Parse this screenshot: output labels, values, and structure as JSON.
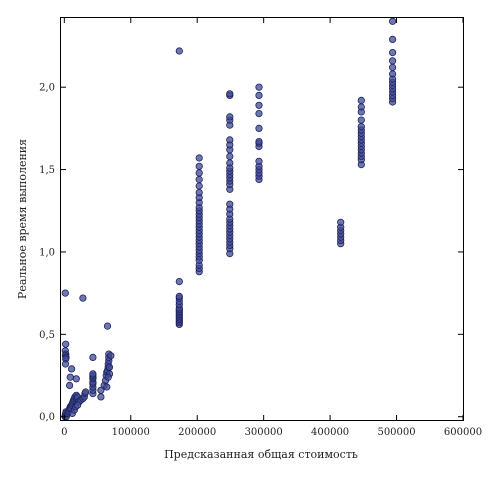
{
  "chart_data": {
    "type": "scatter",
    "title": "",
    "xlabel": "Предсказанная общая стоимость",
    "ylabel": "Реальное время выполения",
    "xlim": [
      -5000,
      600000
    ],
    "ylim": [
      -0.02,
      2.42
    ],
    "x_ticks": [
      0,
      100000,
      200000,
      300000,
      400000,
      500000,
      600000
    ],
    "x_tick_labels": [
      "0",
      "100000",
      "200000",
      "300000",
      "400000",
      "500000",
      "600000"
    ],
    "y_ticks": [
      0.0,
      0.5,
      1.0,
      1.5,
      2.0
    ],
    "y_tick_labels": [
      "0,0",
      "0,5",
      "1,0",
      "1,5",
      "2,0"
    ],
    "grid": false,
    "legend": "none",
    "marker_color": "#3f4a9a",
    "series": [
      {
        "points": [
          [
            1000,
            0.0
          ],
          [
            1500,
            0.01
          ],
          [
            2000,
            0.02
          ],
          [
            3000,
            0.0
          ],
          [
            2500,
            0.03
          ],
          [
            1500,
            0.75
          ],
          [
            2000,
            0.44
          ],
          [
            1500,
            0.4
          ],
          [
            2200,
            0.38
          ],
          [
            1800,
            0.37
          ],
          [
            2500,
            0.36
          ],
          [
            2000,
            0.35
          ],
          [
            1800,
            0.32
          ],
          [
            5000,
            0.02
          ],
          [
            6000,
            0.03
          ],
          [
            7000,
            0.04
          ],
          [
            8000,
            0.05
          ],
          [
            9000,
            0.06
          ],
          [
            10000,
            0.05
          ],
          [
            11000,
            0.07
          ],
          [
            12000,
            0.08
          ],
          [
            13000,
            0.09
          ],
          [
            14000,
            0.1
          ],
          [
            15000,
            0.11
          ],
          [
            16000,
            0.12
          ],
          [
            18000,
            0.13
          ],
          [
            19000,
            0.11
          ],
          [
            20000,
            0.12
          ],
          [
            22000,
            0.09
          ],
          [
            25000,
            0.1
          ],
          [
            28000,
            0.11
          ],
          [
            30000,
            0.12
          ],
          [
            31000,
            0.14
          ],
          [
            32000,
            0.15
          ],
          [
            8000,
            0.19
          ],
          [
            9000,
            0.24
          ],
          [
            11000,
            0.29
          ],
          [
            18000,
            0.23
          ],
          [
            28000,
            0.72
          ],
          [
            12000,
            0.02
          ],
          [
            15000,
            0.04
          ],
          [
            17000,
            0.06
          ],
          [
            20000,
            0.07
          ],
          [
            43000,
            0.14
          ],
          [
            43000,
            0.16
          ],
          [
            43000,
            0.18
          ],
          [
            43000,
            0.2
          ],
          [
            43000,
            0.21
          ],
          [
            43000,
            0.23
          ],
          [
            43000,
            0.24
          ],
          [
            43000,
            0.25
          ],
          [
            43000,
            0.26
          ],
          [
            43000,
            0.36
          ],
          [
            55000,
            0.12
          ],
          [
            55000,
            0.16
          ],
          [
            60000,
            0.19
          ],
          [
            62000,
            0.22
          ],
          [
            63000,
            0.25
          ],
          [
            64000,
            0.27
          ],
          [
            65000,
            0.28
          ],
          [
            66000,
            0.3
          ],
          [
            66000,
            0.32
          ],
          [
            67000,
            0.34
          ],
          [
            67000,
            0.36
          ],
          [
            67000,
            0.38
          ],
          [
            68000,
            0.3
          ],
          [
            68000,
            0.26
          ],
          [
            70000,
            0.37
          ],
          [
            65000,
            0.55
          ],
          [
            64000,
            0.18
          ],
          [
            66000,
            0.24
          ],
          [
            173000,
            0.56
          ],
          [
            173000,
            0.57
          ],
          [
            173000,
            0.58
          ],
          [
            173000,
            0.59
          ],
          [
            173000,
            0.6
          ],
          [
            173000,
            0.61
          ],
          [
            173000,
            0.62
          ],
          [
            173000,
            0.63
          ],
          [
            173000,
            0.64
          ],
          [
            173000,
            0.65
          ],
          [
            173000,
            0.66
          ],
          [
            173000,
            0.68
          ],
          [
            173000,
            0.7
          ],
          [
            173000,
            0.72
          ],
          [
            173000,
            0.73
          ],
          [
            173000,
            0.82
          ],
          [
            173000,
            2.22
          ],
          [
            203000,
            0.88
          ],
          [
            203000,
            0.9
          ],
          [
            203000,
            0.92
          ],
          [
            203000,
            0.95
          ],
          [
            203000,
            0.97
          ],
          [
            203000,
            0.99
          ],
          [
            203000,
            1.01
          ],
          [
            203000,
            1.03
          ],
          [
            203000,
            1.05
          ],
          [
            203000,
            1.07
          ],
          [
            203000,
            1.09
          ],
          [
            203000,
            1.11
          ],
          [
            203000,
            1.13
          ],
          [
            203000,
            1.15
          ],
          [
            203000,
            1.17
          ],
          [
            203000,
            1.19
          ],
          [
            203000,
            1.21
          ],
          [
            203000,
            1.23
          ],
          [
            203000,
            1.25
          ],
          [
            203000,
            1.27
          ],
          [
            203000,
            1.3
          ],
          [
            203000,
            1.33
          ],
          [
            203000,
            1.36
          ],
          [
            203000,
            1.4
          ],
          [
            203000,
            1.44
          ],
          [
            203000,
            1.48
          ],
          [
            203000,
            1.52
          ],
          [
            203000,
            1.57
          ],
          [
            249000,
            0.99
          ],
          [
            249000,
            1.02
          ],
          [
            249000,
            1.04
          ],
          [
            249000,
            1.06
          ],
          [
            249000,
            1.08
          ],
          [
            249000,
            1.1
          ],
          [
            249000,
            1.12
          ],
          [
            249000,
            1.14
          ],
          [
            249000,
            1.16
          ],
          [
            249000,
            1.18
          ],
          [
            249000,
            1.2
          ],
          [
            249000,
            1.23
          ],
          [
            249000,
            1.26
          ],
          [
            249000,
            1.29
          ],
          [
            249000,
            1.38
          ],
          [
            249000,
            1.41
          ],
          [
            249000,
            1.43
          ],
          [
            249000,
            1.45
          ],
          [
            249000,
            1.47
          ],
          [
            249000,
            1.49
          ],
          [
            249000,
            1.51
          ],
          [
            249000,
            1.54
          ],
          [
            249000,
            1.58
          ],
          [
            249000,
            1.62
          ],
          [
            249000,
            1.65
          ],
          [
            249000,
            1.68
          ],
          [
            249000,
            1.77
          ],
          [
            249000,
            1.8
          ],
          [
            249000,
            1.82
          ],
          [
            249000,
            1.95
          ],
          [
            249000,
            1.96
          ],
          [
            293000,
            1.44
          ],
          [
            293000,
            1.46
          ],
          [
            293000,
            1.48
          ],
          [
            293000,
            1.5
          ],
          [
            293000,
            1.52
          ],
          [
            293000,
            1.55
          ],
          [
            293000,
            1.64
          ],
          [
            293000,
            1.66
          ],
          [
            293000,
            1.67
          ],
          [
            293000,
            1.75
          ],
          [
            293000,
            1.84
          ],
          [
            293000,
            1.89
          ],
          [
            293000,
            1.95
          ],
          [
            293000,
            2.0
          ],
          [
            416000,
            1.05
          ],
          [
            416000,
            1.07
          ],
          [
            416000,
            1.09
          ],
          [
            416000,
            1.11
          ],
          [
            416000,
            1.13
          ],
          [
            416000,
            1.15
          ],
          [
            416000,
            1.18
          ],
          [
            447000,
            1.53
          ],
          [
            447000,
            1.56
          ],
          [
            447000,
            1.58
          ],
          [
            447000,
            1.6
          ],
          [
            447000,
            1.62
          ],
          [
            447000,
            1.64
          ],
          [
            447000,
            1.66
          ],
          [
            447000,
            1.68
          ],
          [
            447000,
            1.7
          ],
          [
            447000,
            1.72
          ],
          [
            447000,
            1.74
          ],
          [
            447000,
            1.76
          ],
          [
            447000,
            1.8
          ],
          [
            447000,
            1.85
          ],
          [
            447000,
            1.88
          ],
          [
            447000,
            1.92
          ],
          [
            494000,
            1.91
          ],
          [
            494000,
            1.93
          ],
          [
            494000,
            1.95
          ],
          [
            494000,
            1.97
          ],
          [
            494000,
            1.99
          ],
          [
            494000,
            2.01
          ],
          [
            494000,
            2.03
          ],
          [
            494000,
            2.05
          ],
          [
            494000,
            2.08
          ],
          [
            494000,
            2.12
          ],
          [
            494000,
            2.16
          ],
          [
            494000,
            2.21
          ],
          [
            494000,
            2.29
          ],
          [
            494000,
            2.4
          ]
        ]
      }
    ]
  }
}
